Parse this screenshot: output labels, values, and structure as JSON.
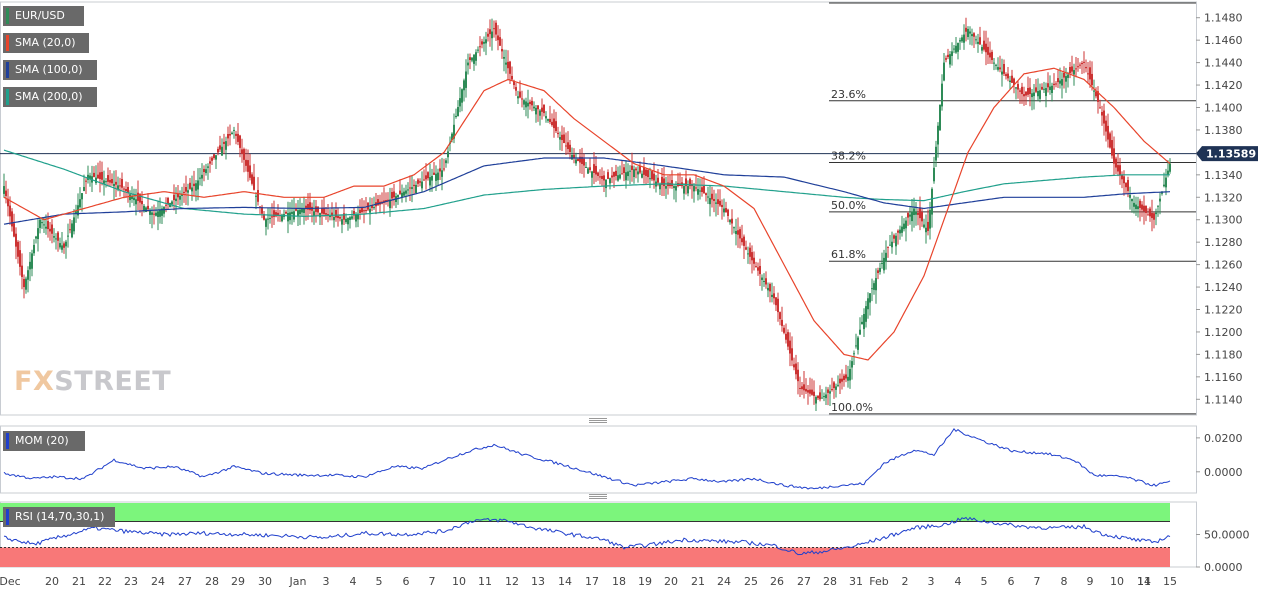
{
  "watermark": {
    "part1": "FX",
    "part2": "STREET"
  },
  "legends": {
    "pair": {
      "label": "EUR/USD",
      "color": "#2e8b57"
    },
    "sma20": {
      "label": "SMA (20,0)",
      "color": "#e8442b"
    },
    "sma100": {
      "label": "SMA (100,0)",
      "color": "#1f3f99"
    },
    "sma200": {
      "label": "SMA (200,0)",
      "color": "#20a08c"
    },
    "mom": {
      "label": "MOM (20)",
      "color": "#1f3fcc"
    },
    "rsi": {
      "label": "RSI (14,70,30,1)",
      "color": "#1f3fcc"
    }
  },
  "colors": {
    "up": "#2e8b57",
    "down": "#cc3333",
    "sma20": "#e8442b",
    "sma100": "#1f3f99",
    "sma200": "#20a08c",
    "indicator": "#1f3fcc",
    "overbought": "#7cf57c",
    "oversold": "#f87878",
    "price_tag": "#1f3355"
  },
  "chart_data": {
    "type": "candlestick",
    "symbol": "EUR/USD",
    "current_price": "1.13589",
    "price_axis": {
      "ticks": [
        "1.1480",
        "1.1460",
        "1.1440",
        "1.1420",
        "1.1400",
        "1.1380",
        "1.1360",
        "1.1340",
        "1.1320",
        "1.1300",
        "1.1280",
        "1.1260",
        "1.1240",
        "1.1220",
        "1.1200",
        "1.1180",
        "1.1160",
        "1.1140"
      ],
      "ylim": [
        1.1126,
        1.1494
      ]
    },
    "fibonacci": [
      {
        "label": "23.6%",
        "value": 1.1406
      },
      {
        "label": "38.2%",
        "value": 1.1351
      },
      {
        "label": "50.0%",
        "value": 1.1307
      },
      {
        "label": "61.8%",
        "value": 1.1263
      },
      {
        "label": "100.0%",
        "value": 1.1127
      }
    ],
    "x_labels": [
      "Dec",
      "20",
      "21",
      "22",
      "23",
      "24",
      "27",
      "28",
      "29",
      "30",
      "Jan",
      "3",
      "4",
      "5",
      "6",
      "7",
      "10",
      "11",
      "12",
      "13",
      "14",
      "17",
      "18",
      "19",
      "20",
      "21",
      "24",
      "25",
      "26",
      "27",
      "28",
      "31",
      "Feb",
      "2",
      "3",
      "4",
      "5",
      "6",
      "7",
      "8",
      "9",
      "10",
      "11",
      "14",
      "15"
    ],
    "ohlc_anchor_closes": [
      [
        0,
        1.133
      ],
      [
        10,
        1.124
      ],
      [
        18,
        1.13
      ],
      [
        30,
        1.1275
      ],
      [
        42,
        1.134
      ],
      [
        58,
        1.133
      ],
      [
        75,
        1.1305
      ],
      [
        95,
        1.133
      ],
      [
        115,
        1.138
      ],
      [
        130,
        1.13
      ],
      [
        150,
        1.131
      ],
      [
        170,
        1.13
      ],
      [
        190,
        1.1315
      ],
      [
        205,
        1.133
      ],
      [
        220,
        1.1345
      ],
      [
        232,
        1.144
      ],
      [
        245,
        1.147
      ],
      [
        257,
        1.141
      ],
      [
        270,
        1.1395
      ],
      [
        285,
        1.1355
      ],
      [
        300,
        1.1335
      ],
      [
        315,
        1.1345
      ],
      [
        330,
        1.133
      ],
      [
        345,
        1.133
      ],
      [
        360,
        1.131
      ],
      [
        372,
        1.127
      ],
      [
        385,
        1.123
      ],
      [
        398,
        1.115
      ],
      [
        408,
        1.114
      ],
      [
        422,
        1.116
      ],
      [
        432,
        1.123
      ],
      [
        442,
        1.1275
      ],
      [
        455,
        1.131
      ],
      [
        462,
        1.129
      ],
      [
        470,
        1.144
      ],
      [
        482,
        1.147
      ],
      [
        495,
        1.144
      ],
      [
        510,
        1.141
      ],
      [
        525,
        1.142
      ],
      [
        540,
        1.144
      ],
      [
        548,
        1.14
      ],
      [
        555,
        1.135
      ],
      [
        565,
        1.1315
      ],
      [
        575,
        1.13
      ],
      [
        583,
        1.135
      ]
    ],
    "sma20_anchors": [
      [
        0,
        1.132
      ],
      [
        20,
        1.13
      ],
      [
        40,
        1.131
      ],
      [
        60,
        1.132
      ],
      [
        80,
        1.1325
      ],
      [
        100,
        1.132
      ],
      [
        120,
        1.1325
      ],
      [
        140,
        1.132
      ],
      [
        160,
        1.132
      ],
      [
        175,
        1.133
      ],
      [
        190,
        1.133
      ],
      [
        205,
        1.134
      ],
      [
        220,
        1.136
      ],
      [
        240,
        1.1415
      ],
      [
        252,
        1.1425
      ],
      [
        270,
        1.1415
      ],
      [
        285,
        1.139
      ],
      [
        300,
        1.137
      ],
      [
        315,
        1.135
      ],
      [
        330,
        1.134
      ],
      [
        345,
        1.134
      ],
      [
        360,
        1.133
      ],
      [
        375,
        1.131
      ],
      [
        390,
        1.126
      ],
      [
        405,
        1.121
      ],
      [
        420,
        1.118
      ],
      [
        432,
        1.1175
      ],
      [
        445,
        1.12
      ],
      [
        460,
        1.125
      ],
      [
        470,
        1.13
      ],
      [
        482,
        1.136
      ],
      [
        495,
        1.14
      ],
      [
        510,
        1.143
      ],
      [
        525,
        1.1435
      ],
      [
        540,
        1.1425
      ],
      [
        555,
        1.14
      ],
      [
        570,
        1.137
      ],
      [
        583,
        1.135
      ]
    ],
    "sma100_anchors": [
      [
        0,
        1.1296
      ],
      [
        30,
        1.1305
      ],
      [
        60,
        1.1307
      ],
      [
        90,
        1.131
      ],
      [
        120,
        1.1311
      ],
      [
        150,
        1.131
      ],
      [
        180,
        1.1311
      ],
      [
        210,
        1.1325
      ],
      [
        240,
        1.1348
      ],
      [
        270,
        1.1355
      ],
      [
        300,
        1.1355
      ],
      [
        330,
        1.1348
      ],
      [
        360,
        1.134
      ],
      [
        390,
        1.1338
      ],
      [
        420,
        1.1325
      ],
      [
        440,
        1.1315
      ],
      [
        460,
        1.131
      ],
      [
        480,
        1.1315
      ],
      [
        500,
        1.132
      ],
      [
        520,
        1.132
      ],
      [
        540,
        1.132
      ],
      [
        560,
        1.1323
      ],
      [
        583,
        1.1325
      ]
    ],
    "sma200_anchors": [
      [
        0,
        1.1362
      ],
      [
        30,
        1.1345
      ],
      [
        60,
        1.1325
      ],
      [
        90,
        1.131
      ],
      [
        120,
        1.1305
      ],
      [
        150,
        1.1303
      ],
      [
        180,
        1.1305
      ],
      [
        210,
        1.131
      ],
      [
        240,
        1.1322
      ],
      [
        270,
        1.1327
      ],
      [
        300,
        1.133
      ],
      [
        330,
        1.1332
      ],
      [
        360,
        1.133
      ],
      [
        390,
        1.1325
      ],
      [
        420,
        1.132
      ],
      [
        440,
        1.1318
      ],
      [
        460,
        1.1317
      ],
      [
        480,
        1.1325
      ],
      [
        500,
        1.1332
      ],
      [
        520,
        1.1335
      ],
      [
        540,
        1.1338
      ],
      [
        560,
        1.134
      ],
      [
        583,
        1.134
      ]
    ],
    "momentum": {
      "ticks": [
        "0.0200",
        "0.0000"
      ],
      "ylim": [
        -0.0125,
        0.027
      ],
      "anchors": [
        [
          0,
          -0.001
        ],
        [
          15,
          -0.004
        ],
        [
          25,
          -0.003
        ],
        [
          40,
          -0.004
        ],
        [
          55,
          0.007
        ],
        [
          70,
          0.002
        ],
        [
          85,
          0.003
        ],
        [
          100,
          -0.003
        ],
        [
          115,
          0.003
        ],
        [
          130,
          -0.001
        ],
        [
          150,
          -0.002
        ],
        [
          165,
          -0.002
        ],
        [
          180,
          -0.003
        ],
        [
          195,
          0.003
        ],
        [
          210,
          0.002
        ],
        [
          220,
          0.007
        ],
        [
          232,
          0.012
        ],
        [
          245,
          0.016
        ],
        [
          260,
          0.01
        ],
        [
          280,
          0.004
        ],
        [
          300,
          -0.003
        ],
        [
          315,
          -0.008
        ],
        [
          330,
          -0.006
        ],
        [
          345,
          -0.004
        ],
        [
          360,
          -0.006
        ],
        [
          375,
          -0.004
        ],
        [
          390,
          -0.008
        ],
        [
          405,
          -0.01
        ],
        [
          418,
          -0.008
        ],
        [
          430,
          -0.007
        ],
        [
          440,
          0.005
        ],
        [
          455,
          0.013
        ],
        [
          465,
          0.01
        ],
        [
          475,
          0.025
        ],
        [
          490,
          0.018
        ],
        [
          505,
          0.012
        ],
        [
          520,
          0.011
        ],
        [
          535,
          0.007
        ],
        [
          545,
          -0.002
        ],
        [
          560,
          -0.003
        ],
        [
          575,
          -0.008
        ],
        [
          583,
          -0.006
        ]
      ]
    },
    "rsi": {
      "ticks": [
        "50.0000",
        "0.0000"
      ],
      "ylim": [
        0,
        100
      ],
      "overbought": 70,
      "oversold": 30,
      "anchors": [
        [
          0,
          45
        ],
        [
          15,
          35
        ],
        [
          30,
          48
        ],
        [
          45,
          60
        ],
        [
          60,
          55
        ],
        [
          80,
          50
        ],
        [
          100,
          52
        ],
        [
          120,
          50
        ],
        [
          140,
          48
        ],
        [
          160,
          45
        ],
        [
          180,
          52
        ],
        [
          200,
          50
        ],
        [
          220,
          55
        ],
        [
          235,
          72
        ],
        [
          250,
          72
        ],
        [
          265,
          60
        ],
        [
          280,
          52
        ],
        [
          300,
          42
        ],
        [
          310,
          30
        ],
        [
          325,
          35
        ],
        [
          340,
          42
        ],
        [
          355,
          40
        ],
        [
          370,
          38
        ],
        [
          385,
          33
        ],
        [
          398,
          20
        ],
        [
          412,
          25
        ],
        [
          425,
          32
        ],
        [
          440,
          45
        ],
        [
          455,
          60
        ],
        [
          470,
          65
        ],
        [
          480,
          75
        ],
        [
          495,
          68
        ],
        [
          510,
          62
        ],
        [
          525,
          60
        ],
        [
          540,
          62
        ],
        [
          550,
          50
        ],
        [
          565,
          42
        ],
        [
          575,
          38
        ],
        [
          583,
          48
        ]
      ]
    }
  }
}
